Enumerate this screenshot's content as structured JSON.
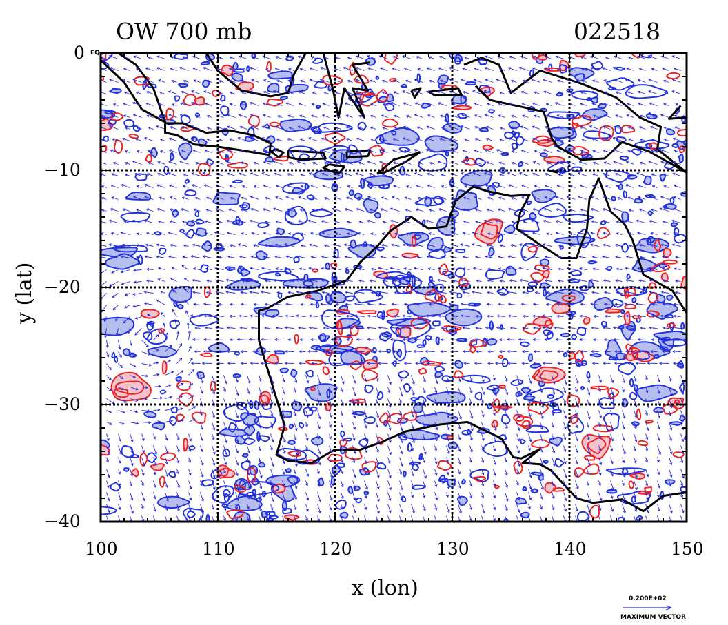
{
  "header": {
    "left_title": "OW 700 mb",
    "right_title": "022518"
  },
  "axes": {
    "xlabel": "x (lon)",
    "ylabel": "y (lat)",
    "xticks": [
      "100",
      "110",
      "120",
      "130",
      "140",
      "150"
    ],
    "yticks": [
      "0",
      "−10",
      "−20",
      "−30",
      "−40"
    ],
    "corner_tag": "EQ",
    "xlim": [
      100,
      150
    ],
    "ylim": [
      -40,
      0
    ]
  },
  "legend": {
    "value": "0.200E+02",
    "caption": "MAXIMUM VECTOR"
  },
  "colors": {
    "positive": "#ee2222",
    "negative": "#2233dd",
    "positive_fill": "#f4c4cc",
    "negative_fill": "#b6bef0",
    "frame": "#000000",
    "vector": "#2a2ad8"
  },
  "map": {
    "region": "Australia / Maritime Continent",
    "level": "700 mb",
    "field": "Okubo-Weiss (OW)",
    "grid": true
  }
}
